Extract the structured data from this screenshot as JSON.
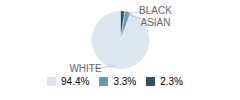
{
  "chart_data": {
    "type": "pie",
    "categories": [
      "WHITE",
      "ASIAN",
      "BLACK"
    ],
    "values": [
      94.4,
      3.3,
      2.3
    ],
    "value_labels": [
      "94.4%",
      "3.3%",
      "2.3%"
    ],
    "colors": [
      "#dce6f0",
      "#6b9ab8",
      "#2e4d6b"
    ],
    "legend": "bottom"
  }
}
